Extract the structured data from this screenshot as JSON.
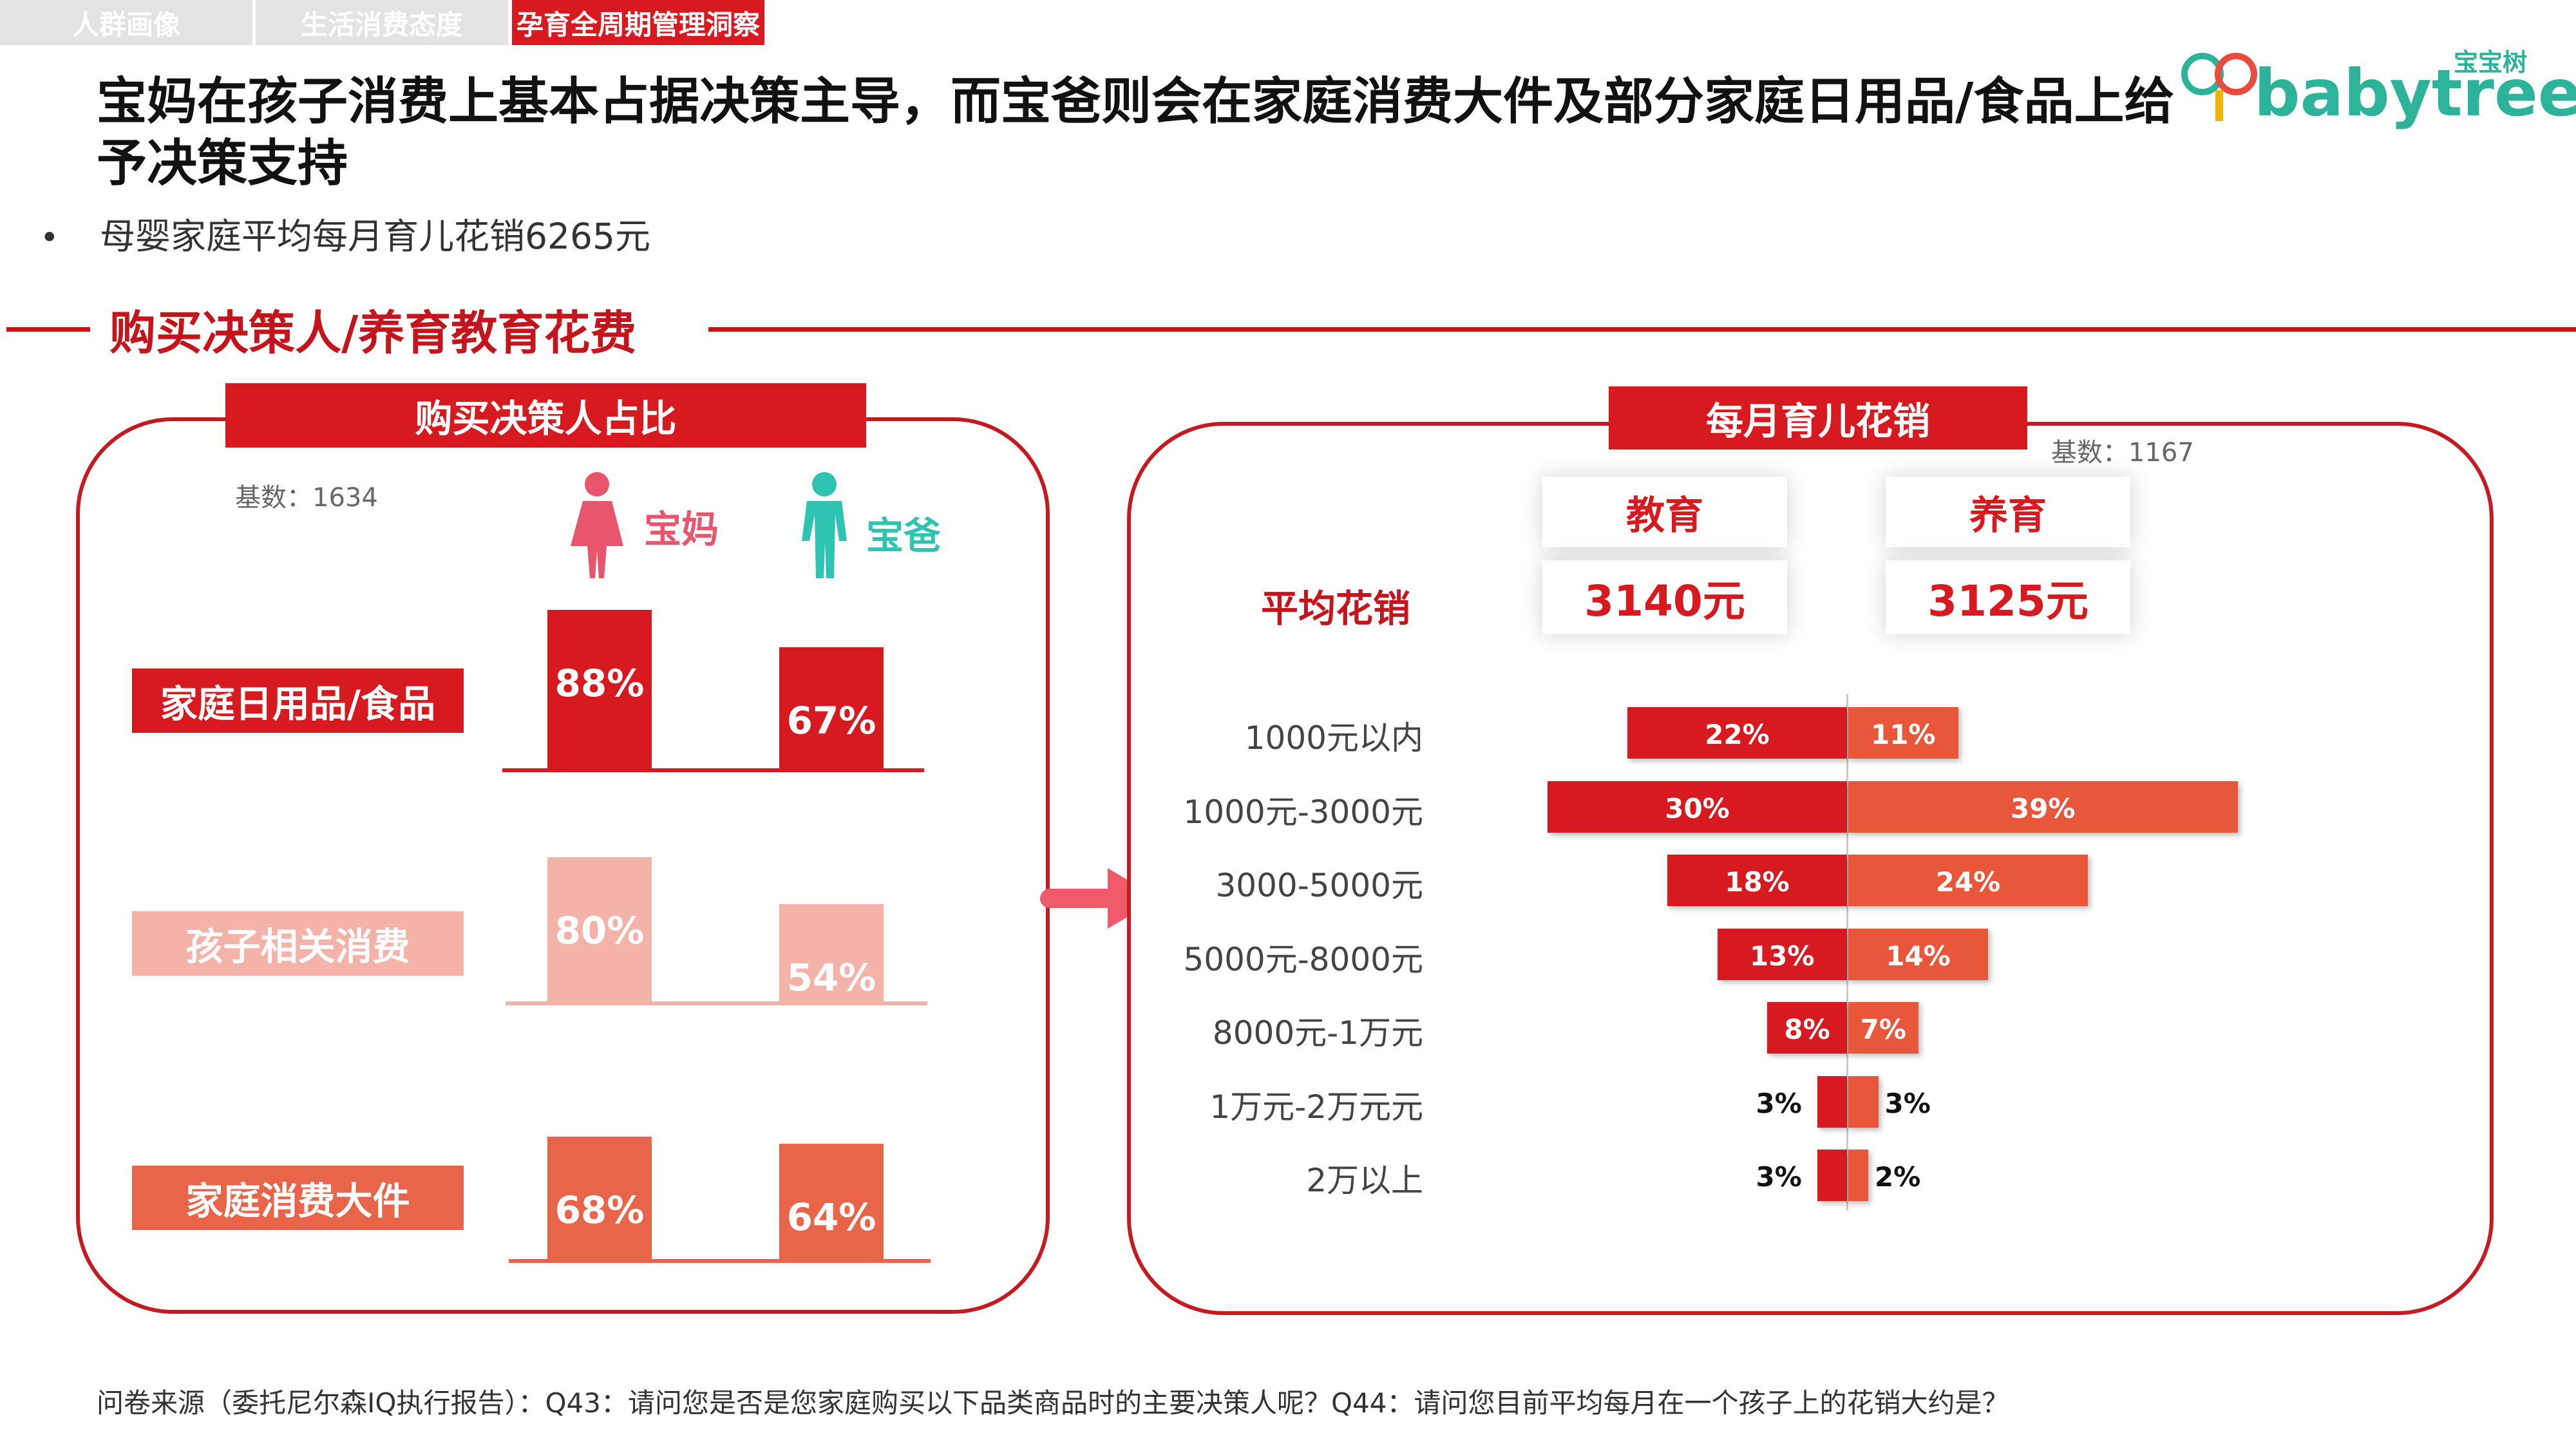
{
  "tabs": [
    {
      "label": "人群画像",
      "active": false
    },
    {
      "label": "生活消费态度",
      "active": false
    },
    {
      "label": "孕育全周期管理洞察",
      "active": true
    }
  ],
  "logo": {
    "text": "babytree",
    "cn": "宝宝树"
  },
  "title": "宝妈在孩子消费上基本占据决策主导，而宝爸则会在家庭消费大件及部分家庭日用品/食品上给予决策支持",
  "bullet": "母婴家庭平均每月育儿花销6265元",
  "section_title": "购买决策人/养育教育花费",
  "left_panel": {
    "header": "购买决策人占比",
    "base": "基数：1634",
    "mom_label": "宝妈",
    "dad_label": "宝爸"
  },
  "right_panel": {
    "header": "每月育儿花销",
    "base": "基数：1167",
    "col_edu": "教育",
    "col_care": "养育",
    "avg_label": "平均花销",
    "avg_edu": "3140元",
    "avg_care": "3125元"
  },
  "chart_data": [
    {
      "type": "bar",
      "title": "购买决策人占比",
      "categories": [
        "家庭日用品/食品",
        "孩子相关消费",
        "家庭消费大件"
      ],
      "series": [
        {
          "name": "宝妈",
          "values": [
            88,
            80,
            68
          ],
          "labels": [
            "88%",
            "80%",
            "68%"
          ]
        },
        {
          "name": "宝爸",
          "values": [
            67,
            54,
            64
          ],
          "labels": [
            "67%",
            "54%",
            "64%"
          ]
        }
      ],
      "colors": [
        "#d71920",
        "#f4b3a8",
        "#e8654a"
      ]
    },
    {
      "type": "bar",
      "title": "每月育儿花销",
      "categories": [
        "1000元以内",
        "1000元-3000元",
        "3000-5000元",
        "5000元-8000元",
        "8000元-1万元",
        "1万元-2万元元",
        "2万以上"
      ],
      "series": [
        {
          "name": "教育",
          "values": [
            22,
            30,
            18,
            13,
            8,
            3,
            3
          ],
          "labels": [
            "22%",
            "30%",
            "18%",
            "13%",
            "8%",
            "3%",
            "3%"
          ],
          "color": "#d71920"
        },
        {
          "name": "养育",
          "values": [
            11,
            39,
            24,
            14,
            7,
            3,
            2
          ],
          "labels": [
            "11%",
            "39%",
            "24%",
            "14%",
            "7%",
            "3%",
            "2%"
          ],
          "color": "#e8573a"
        }
      ]
    }
  ],
  "footer": "问卷来源（委托尼尔森IQ执行报告）：Q43：请问您是否是您家庭购买以下品类商品时的主要决策人呢？Q44：请问您目前平均每月在一个孩子上的花销大约是？"
}
